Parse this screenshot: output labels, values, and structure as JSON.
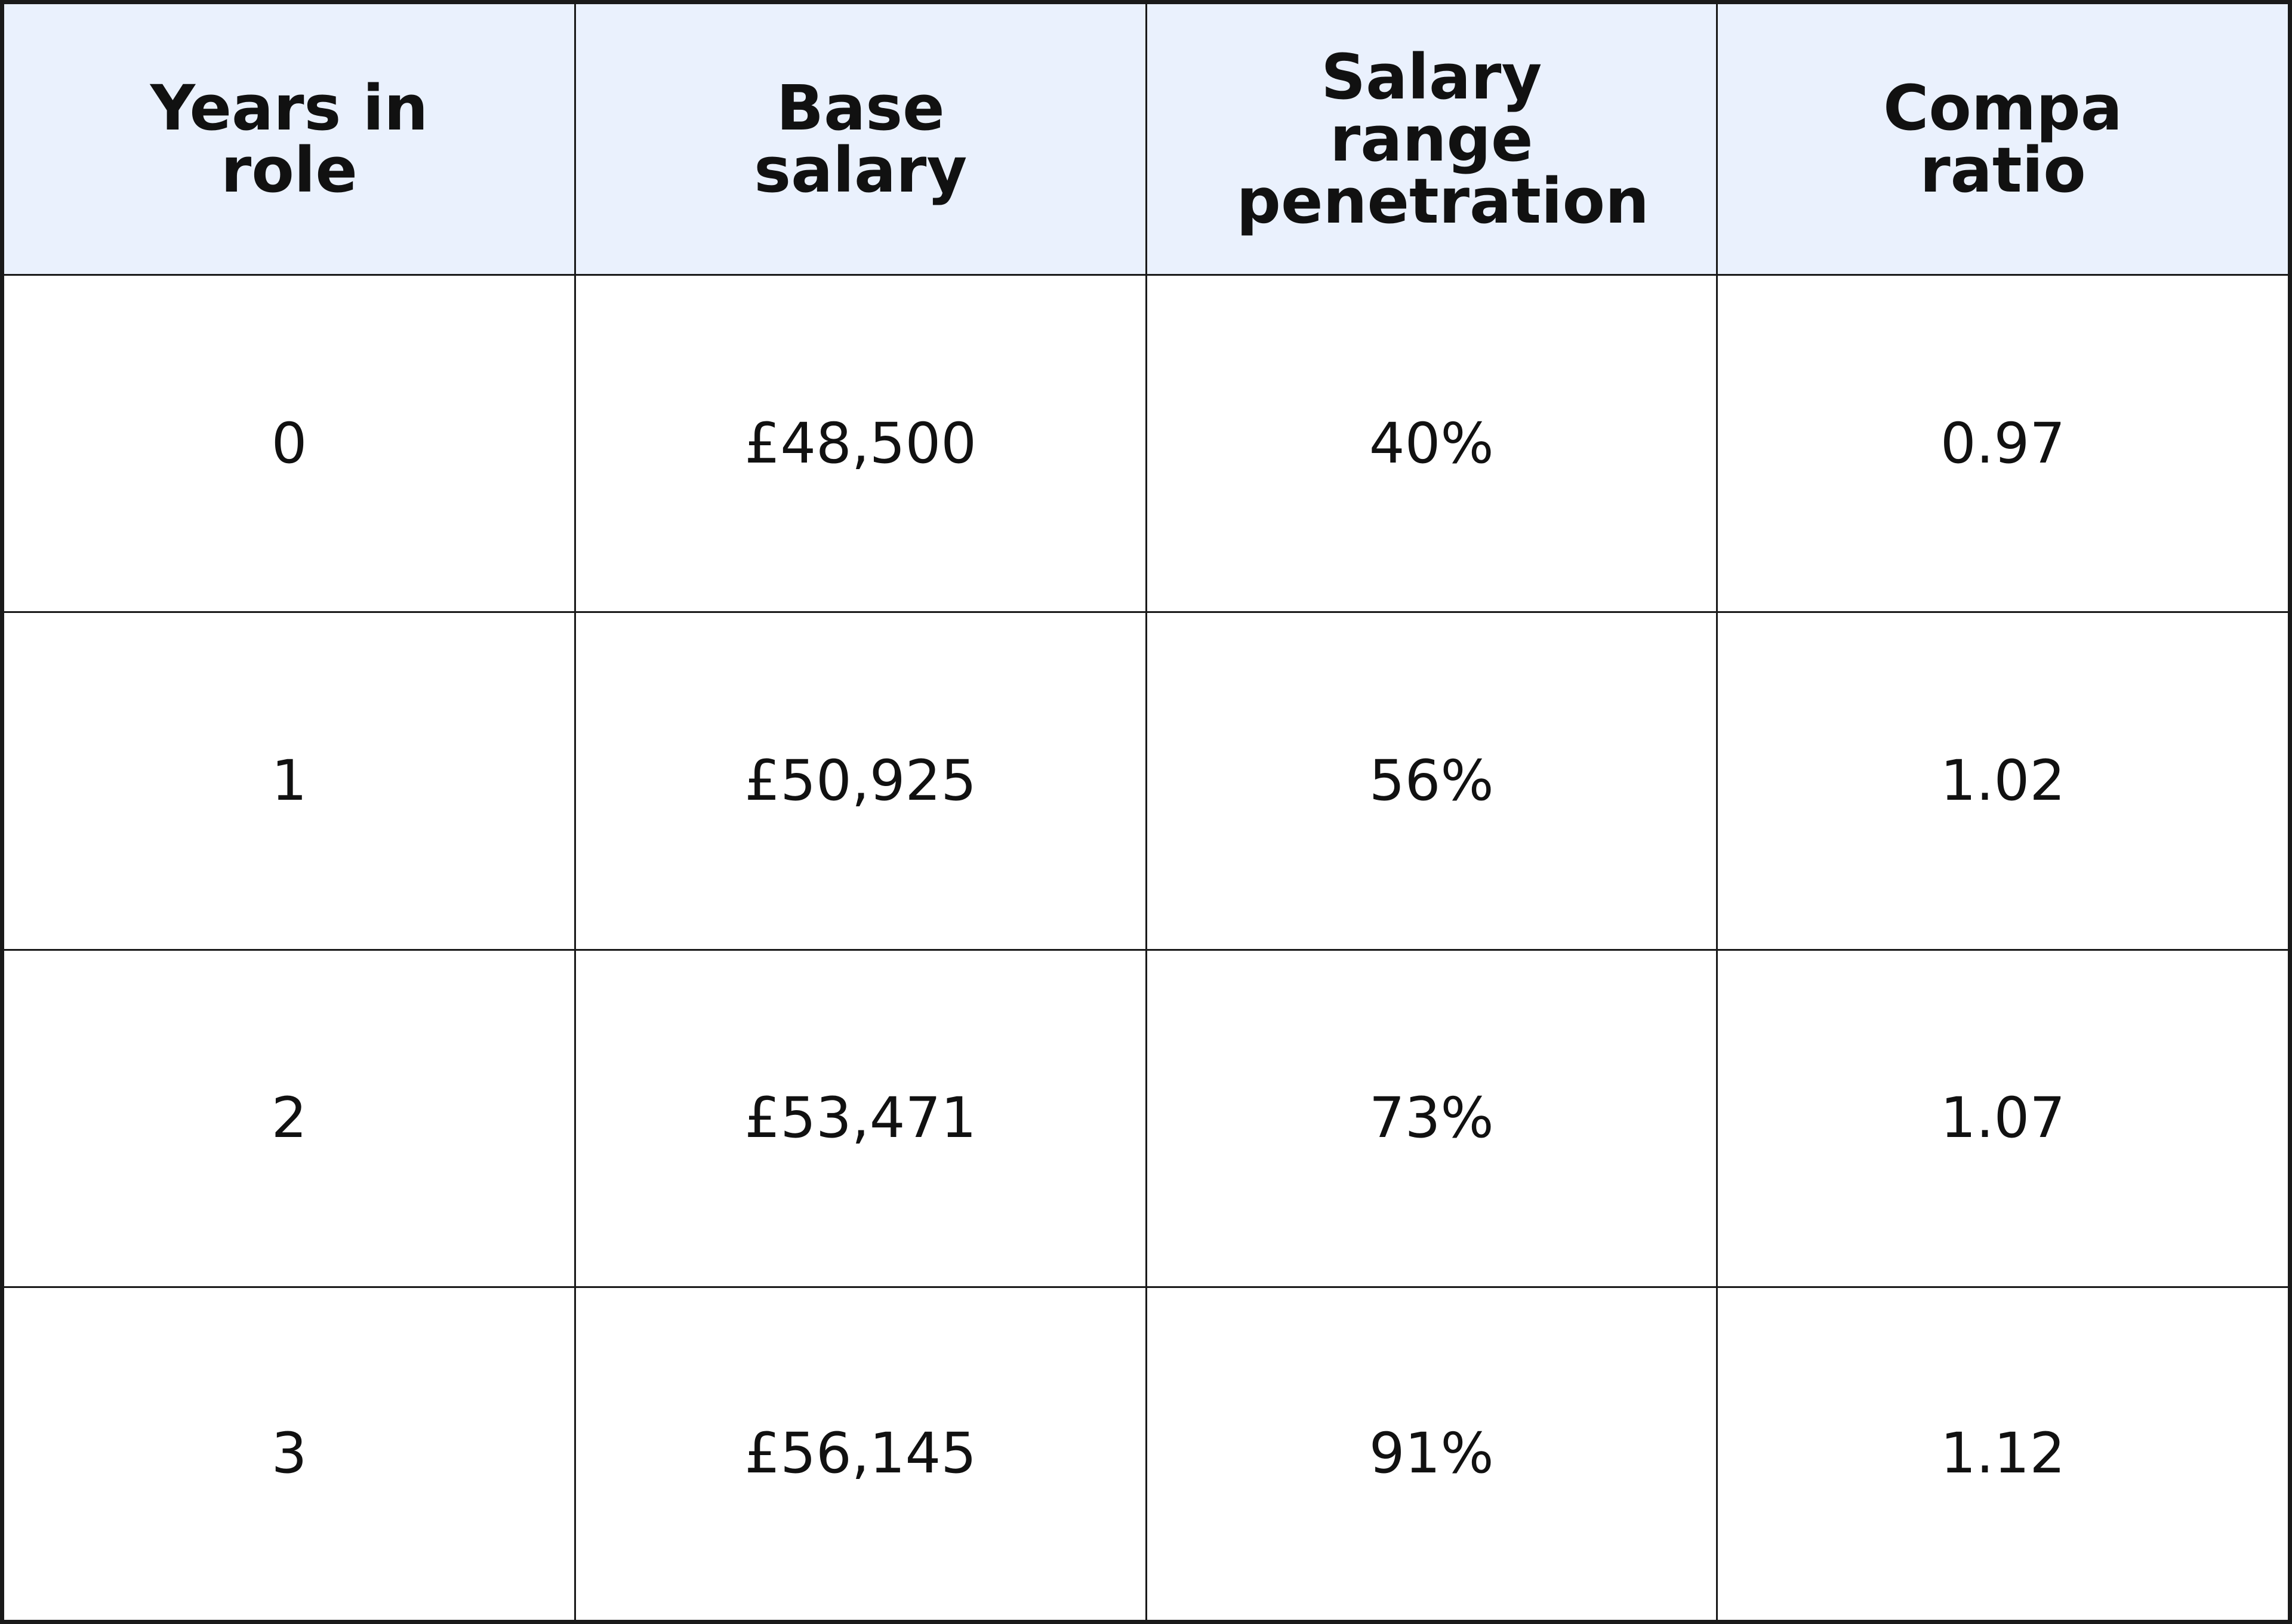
{
  "table": {
    "headers": [
      "Years in role",
      "Base salary",
      "Salary range penetration",
      "Compa ratio"
    ],
    "rows": [
      [
        "0",
        "£48,500",
        "40%",
        "0.97"
      ],
      [
        "1",
        "£50,925",
        "56%",
        "1.02"
      ],
      [
        "2",
        "£53,471",
        "73%",
        "1.07"
      ],
      [
        "3",
        "£56,145",
        "91%",
        "1.12"
      ]
    ]
  }
}
